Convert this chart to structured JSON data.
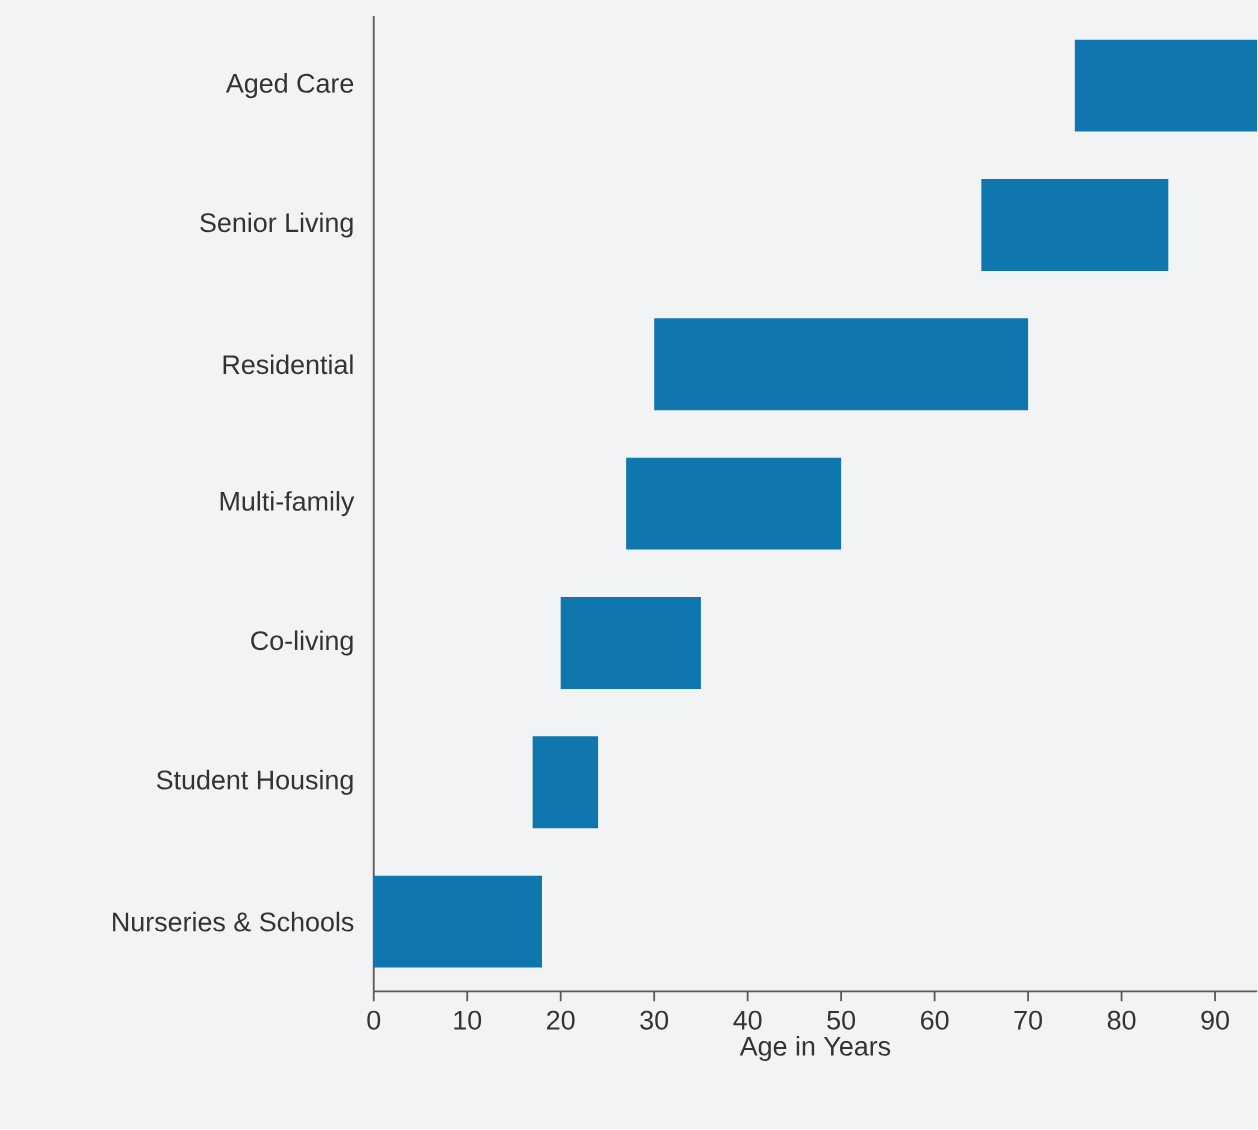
{
  "chart_data": {
    "type": "bar",
    "orientation": "horizontal",
    "xlabel": "Age in Years",
    "categories": [
      "Aged Care",
      "Senior Living",
      "Residential",
      "Multi-family",
      "Co-living",
      "Student Housing",
      "Nurseries & Schools"
    ],
    "base": [
      75,
      65,
      30,
      27,
      20,
      17,
      0
    ],
    "values": [
      19.5,
      20,
      40,
      23,
      15,
      7,
      18
    ],
    "color": "#1077ae",
    "xlim": [
      0,
      94.5
    ],
    "xticks": [
      0,
      10,
      20,
      30,
      40,
      50,
      60,
      70,
      80,
      90
    ]
  }
}
